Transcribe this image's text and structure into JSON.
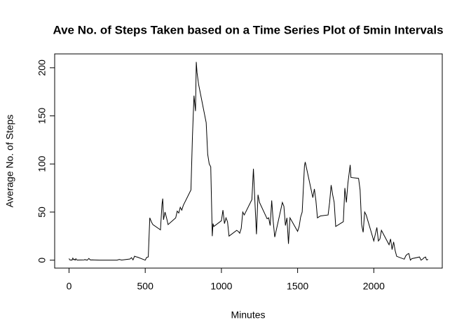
{
  "chart_data": {
    "type": "line",
    "title": "Ave No. of Steps Taken based on a Time Series Plot of 5min Intervals",
    "xlabel": "Minutes",
    "ylabel": "Average No. of Steps",
    "color": "#000000",
    "xlim": [
      -94.2,
      2449.2
    ],
    "ylim": [
      -8.25,
      214.42
    ],
    "xticks": [
      0,
      500,
      1000,
      1500,
      2000
    ],
    "yticks": [
      0,
      50,
      100,
      150,
      200
    ],
    "x": [
      0,
      5,
      10,
      15,
      20,
      25,
      30,
      35,
      40,
      45,
      50,
      55,
      100,
      105,
      110,
      115,
      120,
      130,
      140,
      150,
      200,
      215,
      230,
      245,
      300,
      315,
      330,
      345,
      400,
      410,
      420,
      430,
      440,
      450,
      500,
      510,
      520,
      530,
      540,
      550,
      600,
      610,
      615,
      620,
      630,
      640,
      650,
      700,
      710,
      720,
      730,
      740,
      750,
      800,
      810,
      820,
      830,
      835,
      840,
      850,
      900,
      910,
      920,
      930,
      940,
      945,
      950,
      1000,
      1010,
      1020,
      1030,
      1040,
      1050,
      1100,
      1110,
      1120,
      1130,
      1140,
      1150,
      1200,
      1210,
      1220,
      1230,
      1240,
      1250,
      1300,
      1310,
      1320,
      1330,
      1340,
      1350,
      1400,
      1410,
      1420,
      1430,
      1440,
      1450,
      1500,
      1510,
      1520,
      1530,
      1540,
      1545,
      1550,
      1600,
      1610,
      1620,
      1630,
      1640,
      1650,
      1700,
      1710,
      1720,
      1730,
      1740,
      1750,
      1800,
      1810,
      1820,
      1830,
      1845,
      1850,
      1900,
      1910,
      1920,
      1930,
      1940,
      1950,
      2000,
      2010,
      2020,
      2030,
      2040,
      2050,
      2100,
      2110,
      2120,
      2130,
      2140,
      2150,
      2200,
      2210,
      2220,
      2230,
      2240,
      2250,
      2300,
      2310,
      2320,
      2330,
      2340,
      2345,
      2350,
      2355
    ],
    "values": [
      1.7,
      0.3,
      0.1,
      0.2,
      0.1,
      2.1,
      0.5,
      0.9,
      0,
      1.5,
      0.3,
      0.1,
      0.3,
      0.7,
      0.2,
      0.3,
      0,
      1.8,
      0.2,
      0.3,
      0,
      0,
      0,
      0,
      0,
      0,
      0.7,
      0.1,
      1.2,
      2.6,
      0.3,
      4.1,
      3.5,
      3.1,
      0,
      3,
      3.3,
      44,
      40,
      37,
      31.5,
      58,
      64,
      42,
      50,
      44,
      37,
      44,
      51,
      49,
      55,
      52,
      57,
      73,
      129,
      171,
      155,
      206,
      195,
      183,
      143,
      110,
      100,
      97,
      25,
      38,
      35,
      41,
      52,
      38,
      44,
      40,
      25,
      31,
      30,
      28,
      33,
      50,
      47,
      63,
      95,
      60,
      27,
      68,
      60,
      43,
      44,
      36,
      62,
      40,
      24,
      60,
      56,
      36,
      44,
      17,
      44,
      30,
      35,
      45,
      50,
      82,
      98,
      102,
      65,
      74,
      62,
      44,
      45,
      46,
      47,
      60,
      78,
      68,
      60,
      35,
      40,
      75,
      60,
      80,
      99,
      86,
      85,
      73,
      37,
      29,
      50,
      47,
      20,
      27,
      34,
      20,
      22,
      31,
      16,
      22,
      11,
      19,
      10,
      4,
      1,
      4.6,
      6.2,
      6.9,
      0,
      1.6,
      3.3,
      0,
      1,
      2.6,
      3.3,
      0.6,
      0.2,
      1.1
    ]
  }
}
